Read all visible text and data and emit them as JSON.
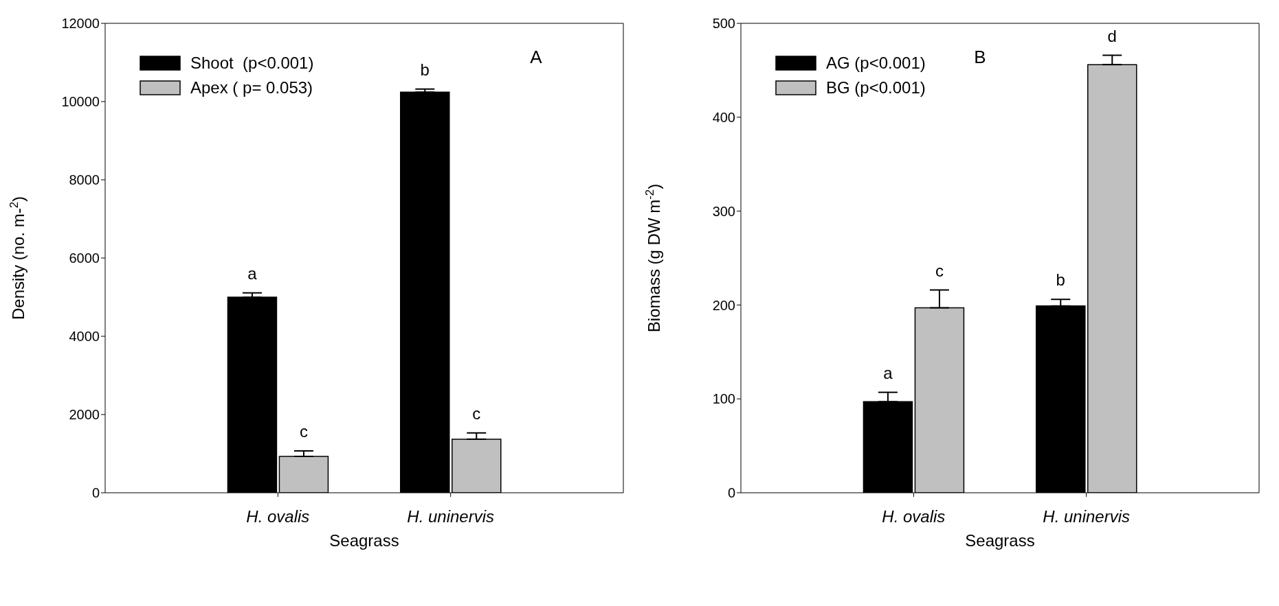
{
  "chart_data": [
    {
      "type": "bar",
      "title": "A",
      "xlabel": "Seagrass",
      "ylabel": "Density (no. m-$^{2}$)",
      "categories": [
        "H. ovalis",
        "H. uninervis"
      ],
      "series": [
        {
          "name": "Shoot  (p<0.001)",
          "color": "#000000",
          "values": [
            5000,
            10240
          ],
          "errors": [
            [
              5000,
              5110
            ],
            [
              10240,
              10320
            ]
          ]
        },
        {
          "name": "Apex ( p= 0.053)",
          "color": "#c0c0c0",
          "values": [
            930,
            1370
          ],
          "errors": [
            [
              930,
              1070
            ],
            [
              1370,
              1530
            ]
          ]
        }
      ],
      "ylim": [
        0,
        12000
      ],
      "yticks": [
        0,
        2000,
        4000,
        6000,
        8000,
        10000,
        12000
      ],
      "grid": false,
      "legend": "top left",
      "annotations": [
        "a",
        "c",
        "b",
        "c"
      ]
    },
    {
      "type": "bar",
      "title": "B",
      "xlabel": "Seagrass",
      "ylabel": "Biomass (g DW m$^{-2}$)",
      "categories": [
        "H. ovalis",
        "H. uninervis"
      ],
      "series": [
        {
          "name": "AG (p<0.001)",
          "color": "#000000",
          "values": [
            97,
            199
          ],
          "errors": [
            [
              97,
              107
            ],
            [
              199,
              206
            ]
          ]
        },
        {
          "name": "BG (p<0.001)",
          "color": "#c0c0c0",
          "values": [
            197,
            456
          ],
          "errors": [
            [
              197,
              216
            ],
            [
              456,
              466
            ]
          ]
        }
      ],
      "ylim": [
        0,
        500
      ],
      "yticks": [
        0,
        100,
        200,
        300,
        400,
        500
      ],
      "grid": false,
      "legend": "top left",
      "annotations": [
        "a",
        "c",
        "b",
        "d"
      ]
    }
  ]
}
